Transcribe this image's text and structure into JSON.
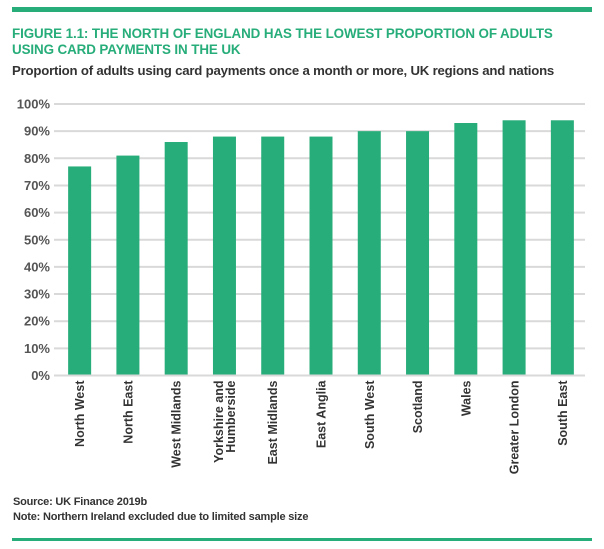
{
  "figure": {
    "title": "FIGURE 1.1: THE NORTH OF ENGLAND HAS THE LOWEST PROPORTION OF ADULTS USING CARD PAYMENTS IN THE UK",
    "subtitle": "Proportion of adults using card payments once a month or more, UK regions and nations",
    "source": "Source: UK Finance 2019b",
    "note": "Note: Northern Ireland excluded due to limited sample size"
  },
  "colors": {
    "accent": "#27ad7a",
    "bar": "#27ad7a",
    "grid": "#d9d9d9",
    "text": "#333333"
  },
  "chart_data": {
    "type": "bar",
    "title": "Proportion of adults using card payments once a month or more, UK regions and nations",
    "xlabel": "",
    "ylabel": "",
    "categories": [
      "North West",
      "North East",
      "West Midlands",
      "Yorkshire and Humberside",
      "East Midlands",
      "East Anglia",
      "South West",
      "Scotland",
      "Wales",
      "Greater London",
      "South East"
    ],
    "category_label_lines": [
      [
        "North West"
      ],
      [
        "North East"
      ],
      [
        "West Midlands"
      ],
      [
        "Yorkshire and",
        "Humberside"
      ],
      [
        "East Midlands"
      ],
      [
        "East Anglia"
      ],
      [
        "South West"
      ],
      [
        "Scotland"
      ],
      [
        "Wales"
      ],
      [
        "Greater London"
      ],
      [
        "South East"
      ]
    ],
    "values": [
      77,
      81,
      86,
      88,
      88,
      88,
      90,
      90,
      93,
      94,
      94
    ],
    "unit": "%",
    "ylim": [
      0,
      100
    ],
    "yticks": [
      0,
      10,
      20,
      30,
      40,
      50,
      60,
      70,
      80,
      90,
      100
    ],
    "ytick_labels": [
      "0%",
      "10%",
      "20%",
      "30%",
      "40%",
      "50%",
      "60%",
      "70%",
      "80%",
      "90%",
      "100%"
    ],
    "grid": true,
    "legend": "none"
  }
}
